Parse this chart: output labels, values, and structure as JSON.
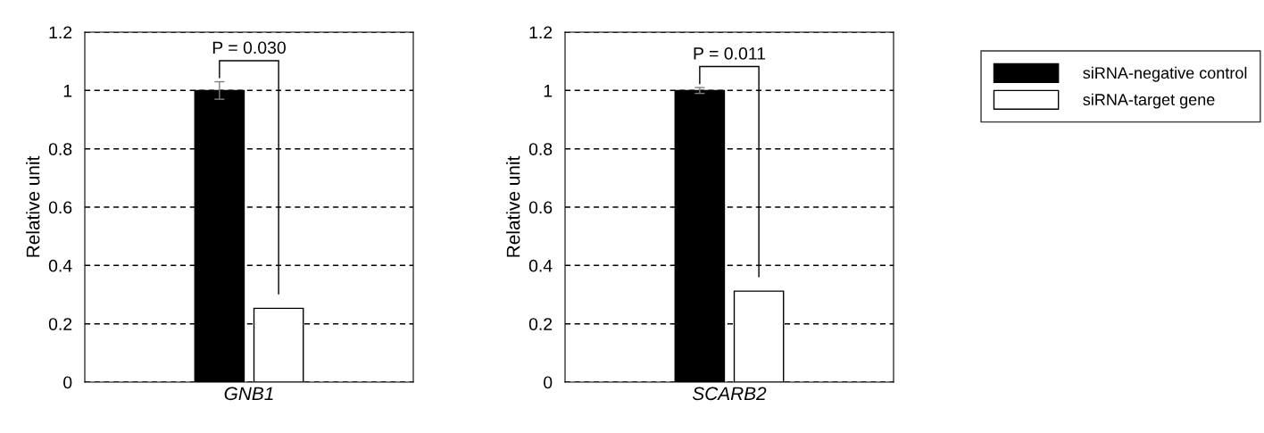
{
  "chart_data": [
    {
      "type": "bar",
      "categories": [
        "GNB1"
      ],
      "ylabel": "Relative unit",
      "ylim": [
        0,
        1.2
      ],
      "yticks": [
        0,
        0.2,
        0.4,
        0.6,
        0.8,
        1,
        1.2
      ],
      "grid": "y",
      "legend": "right",
      "annotations": [
        "P = 0.030"
      ],
      "series": [
        {
          "name": "siRNA-negative control",
          "color": "#000000",
          "values": [
            1.0
          ],
          "errors": [
            0.03
          ]
        },
        {
          "name": "siRNA-target gene",
          "color": "#ffffff",
          "values": [
            0.253
          ]
        }
      ]
    },
    {
      "type": "bar",
      "categories": [
        "SCARB2"
      ],
      "ylabel": "Relative unit",
      "ylim": [
        0,
        1.2
      ],
      "yticks": [
        0,
        0.2,
        0.4,
        0.6,
        0.8,
        1,
        1.2
      ],
      "grid": "y",
      "annotations": [
        "P = 0.011"
      ],
      "series": [
        {
          "color": "#000000",
          "values": [
            1.0
          ],
          "errors": [
            0.01
          ]
        },
        {
          "color": "#ffffff",
          "values": [
            0.312
          ]
        }
      ]
    }
  ]
}
